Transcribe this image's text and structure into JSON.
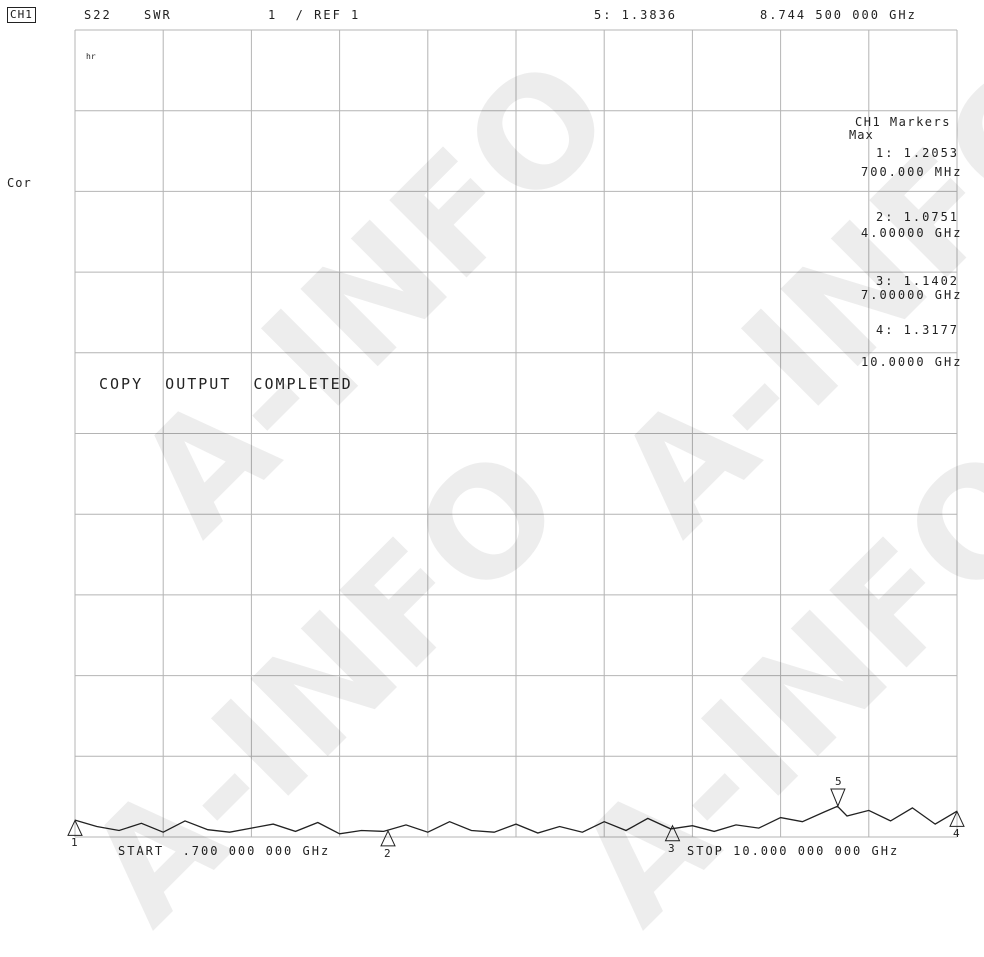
{
  "header": {
    "channel": "CH1",
    "parameter": "S22",
    "format": "SWR",
    "scale": "1  / REF 1",
    "active_marker": "5: 1.3836",
    "active_freq": "8.744 500 000 GHz"
  },
  "left": {
    "cor": "Cor",
    "tag": "hr"
  },
  "message": "COPY  OUTPUT  COMPLETED",
  "markers_panel": {
    "title": "CH1 Markers",
    "mode": "Max",
    "m1_value": "1: 1.2053",
    "m1_freq": "700.000 MHz",
    "m2_value": "2: 1.0751",
    "m2_freq": "4.00000 GHz",
    "m3_value": "3: 1.1402",
    "m3_freq": "7.00000 GHz",
    "m4_value": "4: 1.3177",
    "m4_freq": "10.0000 GHz"
  },
  "footer": {
    "start": "START  .700 000 000 GHz",
    "stop": "STOP 10.000 000 000 GHz"
  },
  "marker_numbers": [
    "1",
    "2",
    "3",
    "4",
    "5"
  ],
  "watermark": "A-INFO",
  "chart_data": {
    "type": "line",
    "x_unit": "GHz",
    "x_range": [
      0.7,
      10.0
    ],
    "y_range": [
      1,
      11
    ],
    "grid": true,
    "divisions": {
      "x": 10,
      "y": 10
    },
    "trace_color": "#222222",
    "grid_color": "#b4b4b4",
    "x": [
      0.7,
      0.93,
      1.165,
      1.4,
      1.63,
      1.86,
      2.1,
      2.33,
      2.56,
      2.79,
      3.025,
      3.26,
      3.49,
      3.72,
      3.955,
      4.19,
      4.42,
      4.65,
      4.88,
      5.12,
      5.35,
      5.58,
      5.81,
      6.05,
      6.28,
      6.51,
      6.74,
      6.98,
      7.21,
      7.44,
      7.67,
      7.91,
      8.14,
      8.37,
      8.6,
      8.74,
      8.84,
      9.07,
      9.3,
      9.53,
      9.77,
      10.0
    ],
    "y": [
      1.21,
      1.13,
      1.08,
      1.17,
      1.06,
      1.2,
      1.09,
      1.06,
      1.11,
      1.16,
      1.07,
      1.18,
      1.04,
      1.08,
      1.07,
      1.15,
      1.06,
      1.19,
      1.08,
      1.06,
      1.16,
      1.05,
      1.13,
      1.06,
      1.19,
      1.08,
      1.23,
      1.1,
      1.14,
      1.07,
      1.15,
      1.11,
      1.24,
      1.19,
      1.31,
      1.38,
      1.26,
      1.33,
      1.2,
      1.36,
      1.16,
      1.32
    ],
    "markers": [
      {
        "n": "1",
        "x": 0.7,
        "y": 1.2053,
        "pointer": "up"
      },
      {
        "n": "2",
        "x": 4.0,
        "y": 1.0751,
        "pointer": "up"
      },
      {
        "n": "3",
        "x": 7.0,
        "y": 1.1402,
        "pointer": "up"
      },
      {
        "n": "4",
        "x": 10.0,
        "y": 1.3177,
        "pointer": "up"
      },
      {
        "n": "5",
        "x": 8.7445,
        "y": 1.3836,
        "pointer": "down"
      }
    ]
  }
}
